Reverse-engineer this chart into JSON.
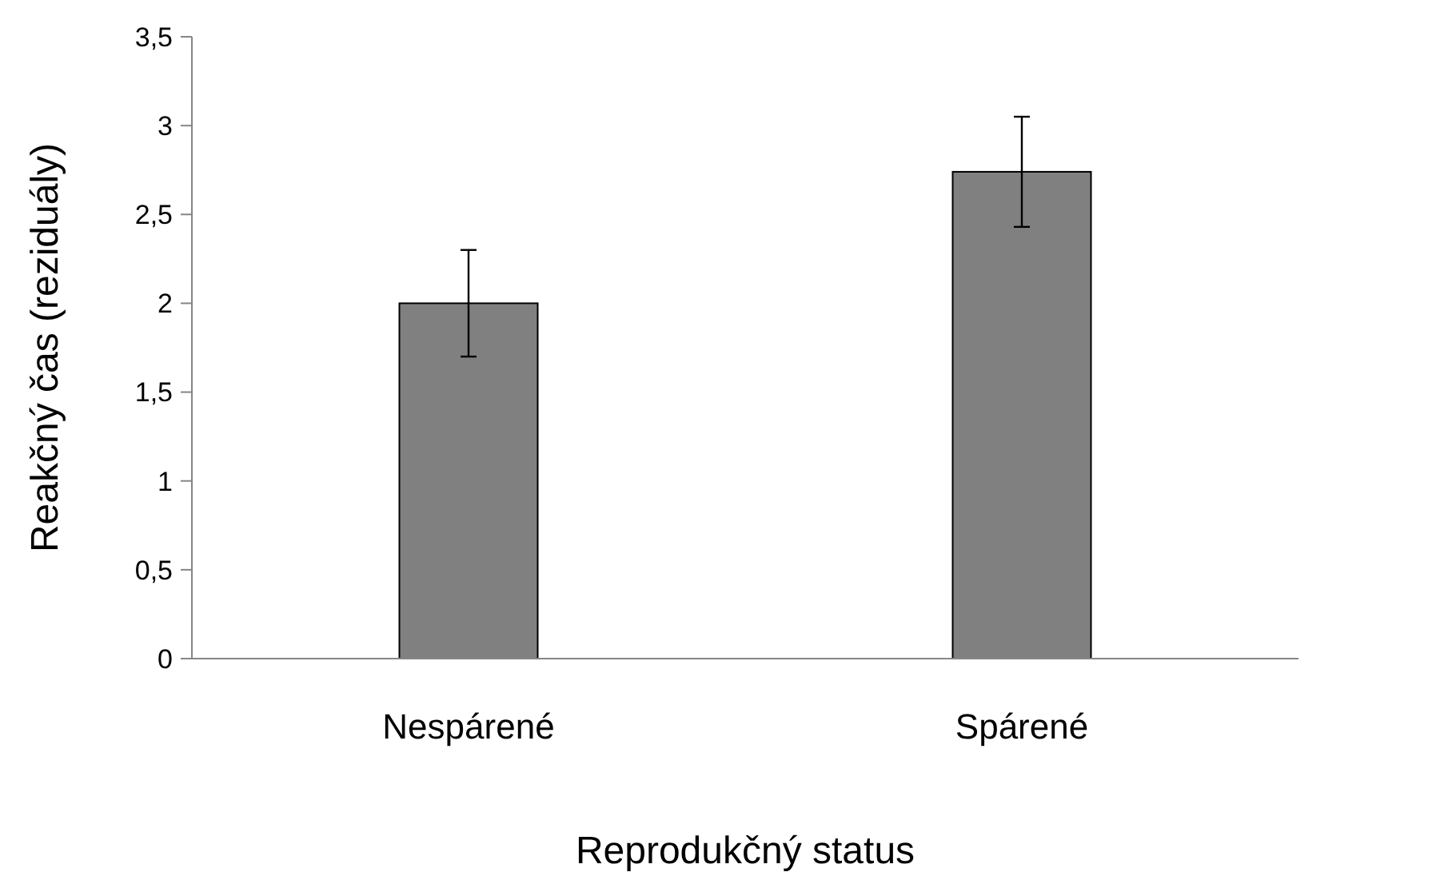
{
  "chart_data": {
    "type": "bar",
    "xlabel": "Reprodukčný status",
    "ylabel": "Reakčný čas (reziduály)",
    "categories": [
      "Nespárené",
      "Spárené"
    ],
    "values": [
      2.0,
      2.74
    ],
    "errors": [
      0.3,
      0.31
    ],
    "color": "#808080",
    "ylim": [
      0,
      3.5
    ],
    "yticks": [
      {
        "value": 0,
        "label": "0"
      },
      {
        "value": 0.5,
        "label": "0,5"
      },
      {
        "value": 1,
        "label": "1"
      },
      {
        "value": 1.5,
        "label": "1,5"
      },
      {
        "value": 2,
        "label": "2"
      },
      {
        "value": 2.5,
        "label": "2,5"
      },
      {
        "value": 3,
        "label": "3"
      },
      {
        "value": 3.5,
        "label": "3,5"
      }
    ],
    "grid": false
  }
}
